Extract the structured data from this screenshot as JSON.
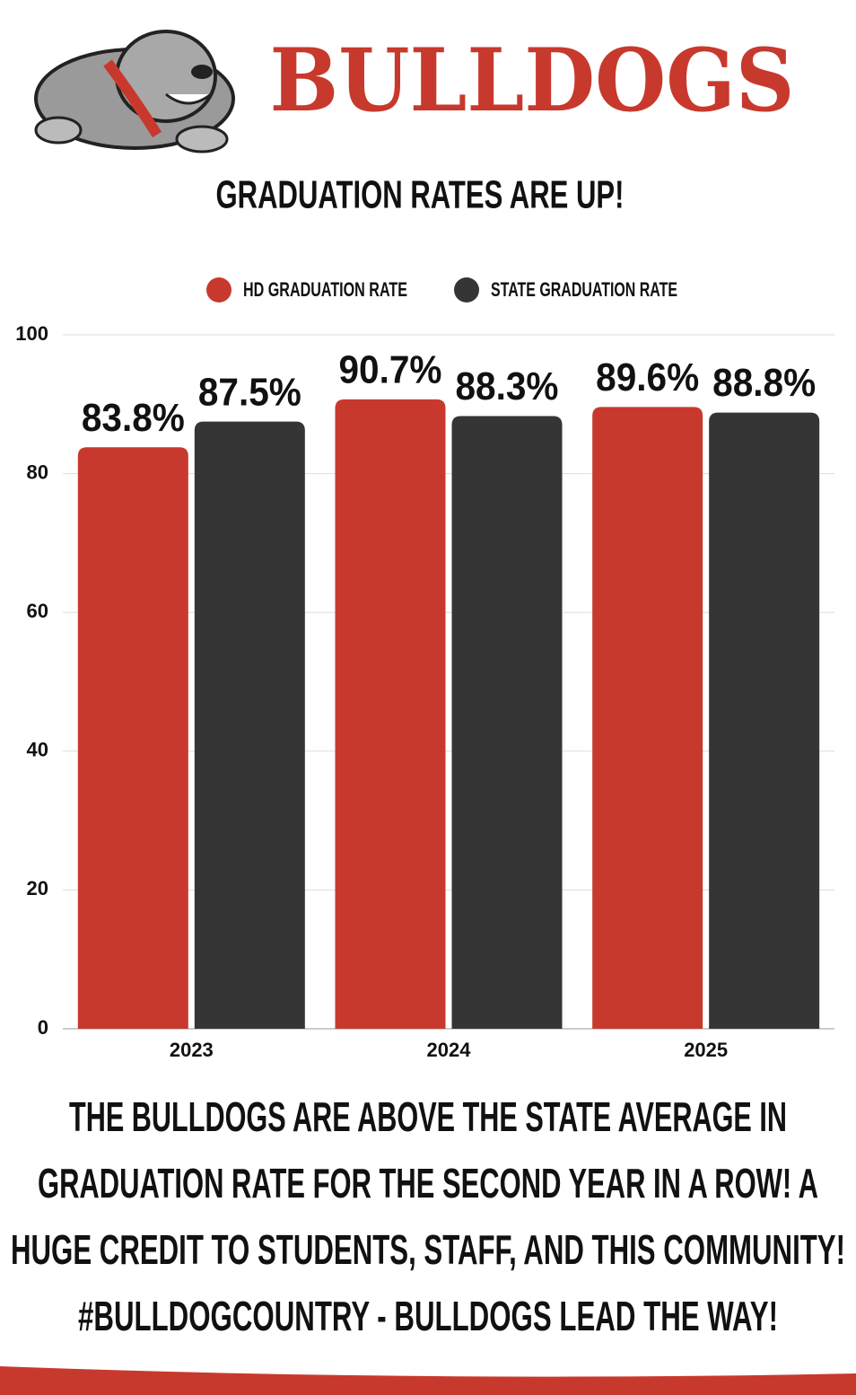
{
  "header": {
    "title": "BULLDOGS"
  },
  "chart_data": {
    "type": "bar",
    "title": "GRADUATION RATES ARE UP!",
    "categories": [
      "2023",
      "2024",
      "2025"
    ],
    "series": [
      {
        "name": "HD GRADUATION RATE",
        "color": "#c8392d",
        "values": [
          83.8,
          90.7,
          89.6
        ],
        "value_labels": [
          "83.8%",
          "90.7%",
          "89.6%"
        ]
      },
      {
        "name": "STATE GRADUATION RATE",
        "color": "#353535",
        "values": [
          87.5,
          88.3,
          88.8
        ],
        "value_labels": [
          "87.5%",
          "88.3%",
          "88.8%"
        ]
      }
    ],
    "ylim": [
      0,
      100
    ],
    "yticks": [
      0,
      20,
      40,
      60,
      80,
      100
    ],
    "grid": true,
    "legend": "top"
  },
  "caption": {
    "lines": [
      "THE BULLDOGS ARE ABOVE THE STATE AVERAGE IN",
      "GRADUATION RATE FOR THE SECOND YEAR IN A ROW! A",
      "HUGE CREDIT TO STUDENTS, STAFF, AND THIS COMMUNITY!",
      "#BULLDOGCOUNTRY - BULLDOGS LEAD THE WAY!"
    ]
  }
}
